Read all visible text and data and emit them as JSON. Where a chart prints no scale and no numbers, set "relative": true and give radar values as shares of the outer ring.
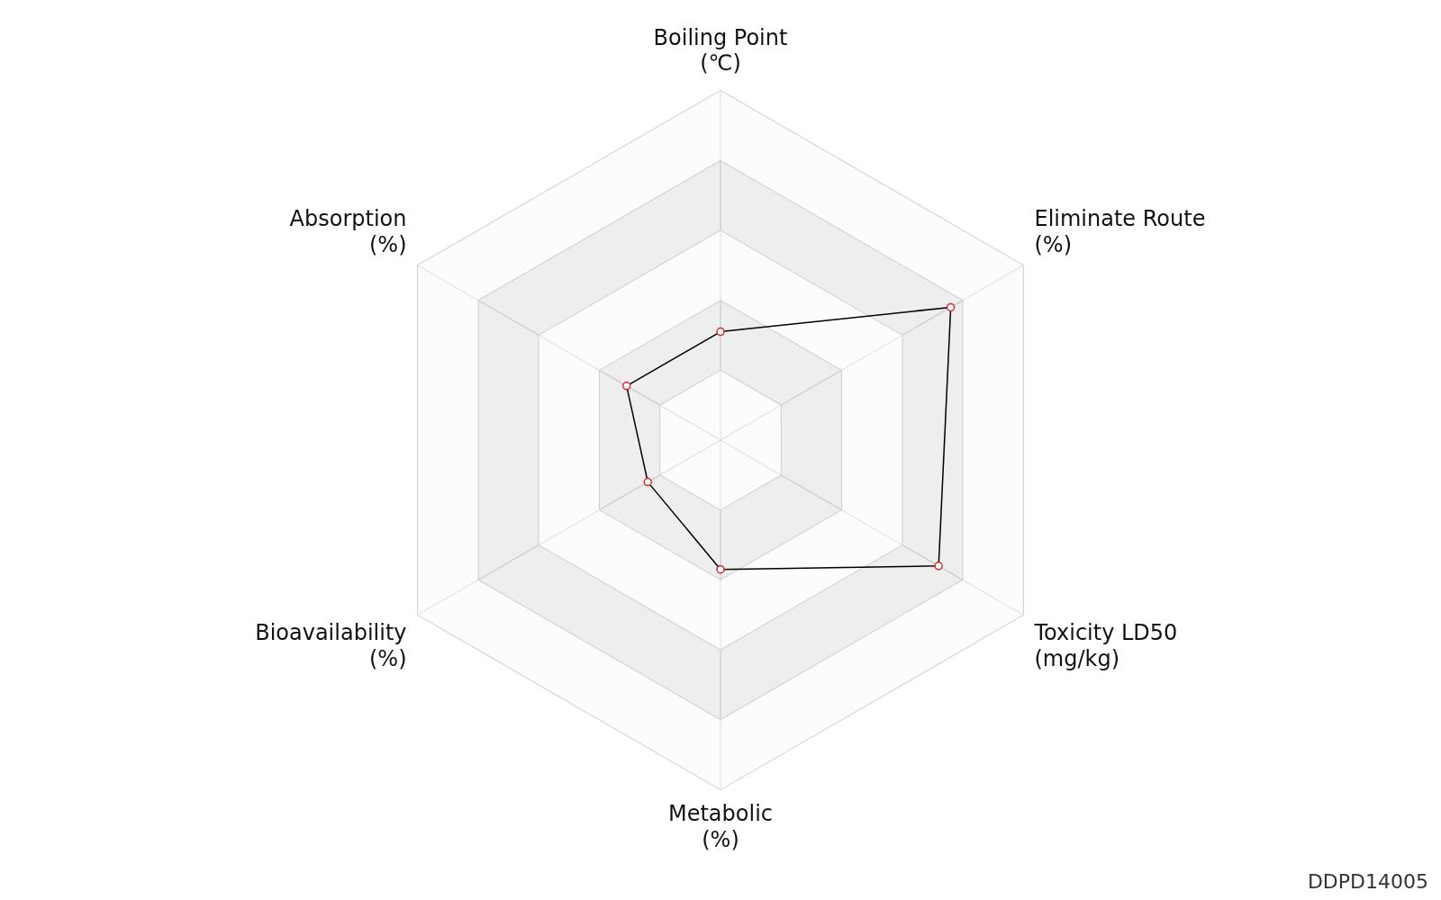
{
  "chart_data": {
    "type": "radar",
    "relative": true,
    "categories": [
      "Boiling Point (℃)",
      "Eliminate Route (%)",
      "Toxicity LD50 (mg/kg)",
      "Metabolic (%)",
      "Bioavailability (%)",
      "Absorption (%)"
    ],
    "series": [
      {
        "color": "#000000",
        "values": [
          0.31,
          0.76,
          0.72,
          0.37,
          0.24,
          0.31
        ]
      }
    ],
    "marker": "circle",
    "legend": false,
    "annotations": [
      "DDPD14005"
    ]
  }
}
